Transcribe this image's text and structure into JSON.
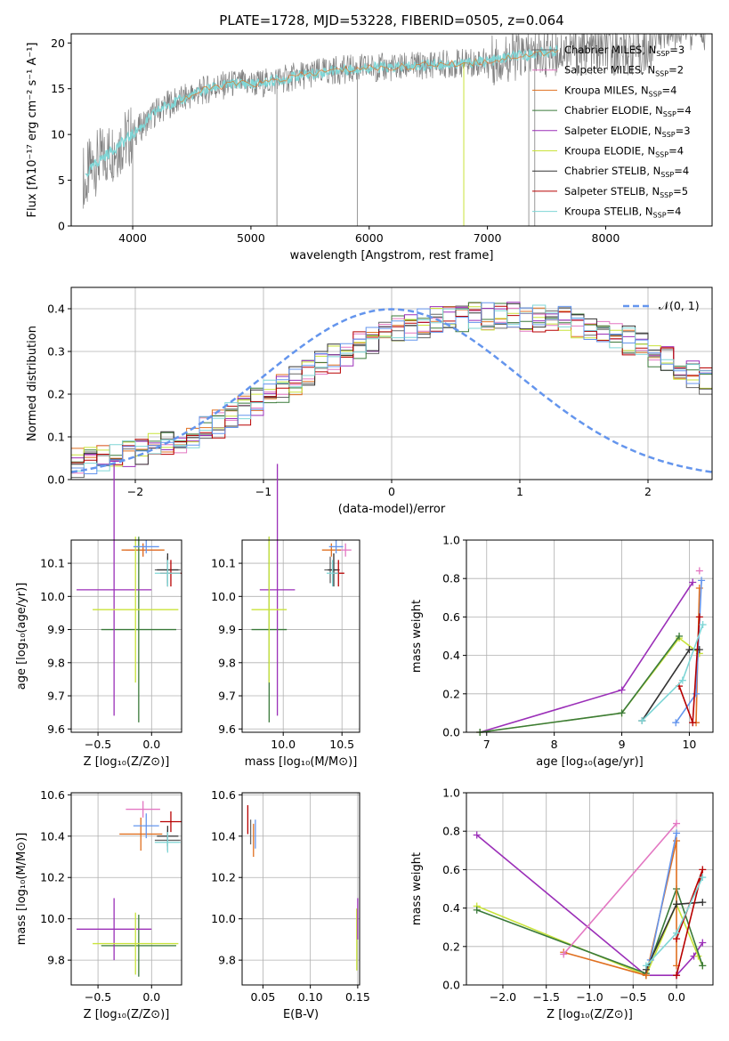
{
  "title": "PLATE=1728, MJD=53228, FIBERID=0505, z=0.064",
  "chart_data": [
    {
      "id": "spectrum",
      "type": "line",
      "xlabel": "wavelength [Angstrom, rest frame]",
      "ylabel": "Flux [fλ10⁻¹⁷ erg cm⁻² s⁻¹ A⁻¹]",
      "xlim": [
        3480,
        8900
      ],
      "ylim": [
        0,
        21
      ],
      "xticks": [
        4000,
        5000,
        6000,
        7000,
        8000
      ],
      "yticks": [
        0,
        5,
        10,
        15,
        20
      ],
      "grid": false,
      "legend_position": "right",
      "data": {
        "x": [
          3600,
          3700,
          3800,
          3900,
          4000,
          4100,
          4200,
          4300,
          4400,
          4500,
          4600,
          4700,
          4800,
          4900,
          5000,
          5100,
          5200,
          5300,
          5400,
          5500,
          5600,
          5700,
          5800,
          5900,
          6000,
          6100,
          6200,
          6300,
          6400,
          6500,
          6600,
          6700,
          6800,
          6900,
          7000,
          7100,
          7200,
          7300,
          7400,
          7500,
          7600
        ],
        "y": [
          5.5,
          7.0,
          8.0,
          9.0,
          10.0,
          11.2,
          12.5,
          13.3,
          13.7,
          14.3,
          14.8,
          15.2,
          15.4,
          15.6,
          15.5,
          15.6,
          15.9,
          16.1,
          16.4,
          16.6,
          16.8,
          17.0,
          17.1,
          17.2,
          17.3,
          17.3,
          17.3,
          17.4,
          17.5,
          17.6,
          17.7,
          17.7,
          17.8,
          17.9,
          18.0,
          18.2,
          18.5,
          18.6,
          18.8,
          19.0,
          19.2
        ]
      },
      "series": [
        {
          "label": "Chabrier MILES, N",
          "sub": "SSP",
          "suffix": "=3",
          "color": "#666666"
        },
        {
          "label": "Salpeter MILES, N",
          "sub": "SSP",
          "suffix": "=2",
          "color": "#e377c2"
        },
        {
          "label": "Kroupa MILES, N",
          "sub": "SSP",
          "suffix": "=4",
          "color": "#e07020"
        },
        {
          "label": "Chabrier ELODIE, N",
          "sub": "SSP",
          "suffix": "=4",
          "color": "#3a7a3a"
        },
        {
          "label": "Salpeter ELODIE, N",
          "sub": "SSP",
          "suffix": "=3",
          "color": "#9b2fb8"
        },
        {
          "label": "Kroupa ELODIE, N",
          "sub": "SSP",
          "suffix": "=4",
          "color": "#c9e33a"
        },
        {
          "label": "Chabrier STELIB, N",
          "sub": "SSP",
          "suffix": "=4",
          "color": "#333333"
        },
        {
          "label": "Salpeter STELIB, N",
          "sub": "SSP",
          "suffix": "=5",
          "color": "#b80000"
        },
        {
          "label": "Kroupa STELIB, N",
          "sub": "SSP",
          "suffix": "=4",
          "color": "#7fd6d6"
        }
      ]
    },
    {
      "id": "residuals",
      "type": "line",
      "xlabel": "(data-model)/error",
      "ylabel": "Normed distribution",
      "xlim": [
        -2.5,
        2.5
      ],
      "ylim": [
        0,
        0.45
      ],
      "xticks": [
        -2,
        -1,
        0,
        1,
        2
      ],
      "yticks": [
        0.0,
        0.1,
        0.2,
        0.3,
        0.4
      ],
      "grid": true,
      "legend": "𝒩(0, 1)",
      "legend_position": "top-right",
      "gaussian": {
        "mean": 0,
        "sigma": 1
      },
      "histogram": {
        "bin_width": 0.1,
        "bin_start": -2.5,
        "values": [
          0.04,
          0.042,
          0.045,
          0.05,
          0.058,
          0.065,
          0.073,
          0.082,
          0.092,
          0.104,
          0.117,
          0.131,
          0.146,
          0.162,
          0.18,
          0.198,
          0.215,
          0.232,
          0.249,
          0.266,
          0.283,
          0.299,
          0.314,
          0.327,
          0.339,
          0.349,
          0.358,
          0.365,
          0.371,
          0.376,
          0.379,
          0.38,
          0.381,
          0.382,
          0.381,
          0.38,
          0.379,
          0.376,
          0.371,
          0.365,
          0.357,
          0.348,
          0.338,
          0.326,
          0.313,
          0.298,
          0.282,
          0.265,
          0.248,
          0.231
        ]
      }
    },
    {
      "id": "age-Z",
      "type": "scatter",
      "xlabel": "Z [log₁₀(Z/Z⊙)]",
      "ylabel": "age  [log₁₀(age/yr)]",
      "xlim": [
        -0.75,
        0.28
      ],
      "ylim": [
        9.59,
        10.17
      ],
      "xticks": [
        -0.5,
        0.0
      ],
      "xticklabels": [
        "−0.5",
        "0.0"
      ],
      "yticks": [
        9.6,
        9.7,
        9.8,
        9.9,
        10.0,
        10.1
      ],
      "grid": true,
      "points": [
        {
          "x": 0.15,
          "y": 10.08,
          "xe": 0.12,
          "ye": 0.04,
          "color": "#666666"
        },
        {
          "x": -0.08,
          "y": 10.14,
          "xe": 0.16,
          "ye": 0.02,
          "color": "#e377c2"
        },
        {
          "x": -0.08,
          "y": 10.14,
          "xe": 0.2,
          "ye": 0.02,
          "color": "#e07020"
        },
        {
          "x": -0.12,
          "y": 9.9,
          "xe": 0.35,
          "ye": 0.28,
          "color": "#3a7a3a"
        },
        {
          "x": -0.35,
          "y": 10.02,
          "xe": 0.35,
          "ye": 0.38,
          "color": "#9b2fb8"
        },
        {
          "x": -0.15,
          "y": 9.96,
          "xe": 0.4,
          "ye": 0.22,
          "color": "#c9e33a"
        },
        {
          "x": 0.15,
          "y": 10.08,
          "xe": 0.1,
          "ye": 0.05,
          "color": "#333333"
        },
        {
          "x": 0.18,
          "y": 10.07,
          "xe": 0.1,
          "ye": 0.04,
          "color": "#b80000"
        },
        {
          "x": 0.15,
          "y": 10.07,
          "xe": 0.12,
          "ye": 0.04,
          "color": "#7fd6d6"
        },
        {
          "x": -0.05,
          "y": 10.15,
          "xe": 0.12,
          "ye": 0.02,
          "color": "#6495ed"
        }
      ]
    },
    {
      "id": "age-mass",
      "type": "scatter",
      "xlabel": "mass [log₁₀(M/M⊙)]",
      "xlim": [
        9.65,
        10.65
      ],
      "ylim": [
        9.59,
        10.17
      ],
      "xticks": [
        10.0,
        10.5
      ],
      "yticks": [
        9.6,
        9.7,
        9.8,
        9.9,
        10.0,
        10.1
      ],
      "grid": true,
      "points": [
        {
          "x": 10.4,
          "y": 10.08,
          "xe": 0.05,
          "ye": 0.04,
          "color": "#666666"
        },
        {
          "x": 10.53,
          "y": 10.14,
          "xe": 0.05,
          "ye": 0.02,
          "color": "#e377c2"
        },
        {
          "x": 10.41,
          "y": 10.14,
          "xe": 0.08,
          "ye": 0.02,
          "color": "#e07020"
        },
        {
          "x": 9.88,
          "y": 9.9,
          "xe": 0.15,
          "ye": 0.28,
          "color": "#3a7a3a"
        },
        {
          "x": 9.95,
          "y": 10.02,
          "xe": 0.15,
          "ye": 0.38,
          "color": "#9b2fb8"
        },
        {
          "x": 9.88,
          "y": 9.96,
          "xe": 0.15,
          "ye": 0.22,
          "color": "#c9e33a"
        },
        {
          "x": 10.43,
          "y": 10.08,
          "xe": 0.05,
          "ye": 0.05,
          "color": "#333333"
        },
        {
          "x": 10.47,
          "y": 10.07,
          "xe": 0.05,
          "ye": 0.04,
          "color": "#b80000"
        },
        {
          "x": 10.42,
          "y": 10.07,
          "xe": 0.05,
          "ye": 0.04,
          "color": "#7fd6d6"
        },
        {
          "x": 10.45,
          "y": 10.15,
          "xe": 0.06,
          "ye": 0.02,
          "color": "#6495ed"
        }
      ]
    },
    {
      "id": "weight-age",
      "type": "line",
      "xlabel": "age  [log₁₀(age/yr)]",
      "ylabel": "mass weight",
      "xlim": [
        6.7,
        10.35
      ],
      "ylim": [
        0,
        1
      ],
      "xticks": [
        7,
        8,
        9,
        10
      ],
      "yticks": [
        0.0,
        0.2,
        0.4,
        0.6,
        0.8,
        1.0
      ],
      "grid": true,
      "series": [
        {
          "color": "#9b2fb8",
          "x": [
            6.9,
            9.0,
            10.05
          ],
          "y": [
            0.0,
            0.22,
            0.78
          ]
        },
        {
          "color": "#c9e33a",
          "x": [
            6.9,
            9.0,
            9.85,
            10.15
          ],
          "y": [
            0.0,
            0.1,
            0.49,
            0.41
          ]
        },
        {
          "color": "#3a7a3a",
          "x": [
            6.9,
            9.0,
            9.85
          ],
          "y": [
            0.0,
            0.1,
            0.5
          ]
        },
        {
          "color": "#e07020",
          "x": [
            10.1,
            10.15
          ],
          "y": [
            0.05,
            0.75
          ]
        },
        {
          "color": "#e377c2",
          "x": [
            10.15
          ],
          "y": [
            0.84
          ]
        },
        {
          "color": "#6495ed",
          "x": [
            9.8,
            10.1,
            10.18
          ],
          "y": [
            0.05,
            0.2,
            0.79
          ]
        },
        {
          "color": "#333333",
          "x": [
            9.3,
            10.0,
            10.15
          ],
          "y": [
            0.06,
            0.43,
            0.43
          ]
        },
        {
          "color": "#b80000",
          "x": [
            9.85,
            10.05,
            10.15
          ],
          "y": [
            0.24,
            0.05,
            0.6
          ]
        },
        {
          "color": "#7fd6d6",
          "x": [
            9.3,
            9.9,
            10.2
          ],
          "y": [
            0.06,
            0.27,
            0.56
          ]
        }
      ]
    },
    {
      "id": "mass-Z",
      "type": "scatter",
      "xlabel": "Z [log₁₀(Z/Z⊙)]",
      "ylabel": "mass [log₁₀(M/M⊙)]",
      "xlim": [
        -0.75,
        0.28
      ],
      "ylim": [
        9.68,
        10.61
      ],
      "xticks": [
        -0.5,
        0.0
      ],
      "xticklabels": [
        "−0.5",
        "0.0"
      ],
      "yticks": [
        9.8,
        10.0,
        10.2,
        10.4,
        10.6
      ],
      "grid": true,
      "points": [
        {
          "x": 0.15,
          "y": 10.38,
          "xe": 0.12,
          "ye": 0.05,
          "color": "#666666"
        },
        {
          "x": -0.08,
          "y": 10.53,
          "xe": 0.16,
          "ye": 0.04,
          "color": "#e377c2"
        },
        {
          "x": -0.1,
          "y": 10.41,
          "xe": 0.2,
          "ye": 0.08,
          "color": "#e07020"
        },
        {
          "x": -0.12,
          "y": 9.87,
          "xe": 0.35,
          "ye": 0.15,
          "color": "#3a7a3a"
        },
        {
          "x": -0.35,
          "y": 9.95,
          "xe": 0.35,
          "ye": 0.15,
          "color": "#9b2fb8"
        },
        {
          "x": -0.15,
          "y": 9.88,
          "xe": 0.4,
          "ye": 0.15,
          "color": "#c9e33a"
        },
        {
          "x": 0.15,
          "y": 10.4,
          "xe": 0.1,
          "ye": 0.05,
          "color": "#333333"
        },
        {
          "x": 0.18,
          "y": 10.47,
          "xe": 0.1,
          "ye": 0.05,
          "color": "#b80000"
        },
        {
          "x": 0.15,
          "y": 10.37,
          "xe": 0.12,
          "ye": 0.05,
          "color": "#7fd6d6"
        },
        {
          "x": -0.05,
          "y": 10.45,
          "xe": 0.12,
          "ye": 0.06,
          "color": "#6495ed"
        }
      ]
    },
    {
      "id": "mass-EBV",
      "type": "scatter",
      "xlabel": "E(B-V)",
      "xlim": [
        0.028,
        0.152
      ],
      "ylim": [
        9.68,
        10.61
      ],
      "xticks": [
        0.05,
        0.1,
        0.15
      ],
      "xticklabels": [
        "0.05",
        "0.10",
        "0.15"
      ],
      "yticks": [
        9.8,
        10.0,
        10.2,
        10.4,
        10.6
      ],
      "grid": true,
      "points": [
        {
          "x": 0.034,
          "y": 10.48,
          "xe": 0.0,
          "ye": 0.07,
          "color": "#b80000"
        },
        {
          "x": 0.037,
          "y": 10.42,
          "xe": 0.0,
          "ye": 0.06,
          "color": "#666666"
        },
        {
          "x": 0.04,
          "y": 10.38,
          "xe": 0.0,
          "ye": 0.08,
          "color": "#e07020"
        },
        {
          "x": 0.042,
          "y": 10.41,
          "xe": 0.0,
          "ye": 0.07,
          "color": "#6495ed"
        },
        {
          "x": 0.149,
          "y": 9.9,
          "xe": 0.0,
          "ye": 0.15,
          "color": "#c9e33a"
        },
        {
          "x": 0.15,
          "y": 10.0,
          "xe": 0.0,
          "ye": 0.1,
          "color": "#9b2fb8"
        }
      ]
    },
    {
      "id": "weight-Z",
      "type": "line",
      "xlabel": "Z [log₁₀(Z/Z⊙)]",
      "ylabel": "mass weight",
      "xlim": [
        -2.42,
        0.42
      ],
      "ylim": [
        0,
        1
      ],
      "xticks": [
        -2.0,
        -1.5,
        -1.0,
        -0.5,
        0.0
      ],
      "xticklabels": [
        "−2.0",
        "−1.5",
        "−1.0",
        "−0.5",
        "0.0"
      ],
      "yticks": [
        0.0,
        0.2,
        0.4,
        0.6,
        0.8,
        1.0
      ],
      "grid": true,
      "series": [
        {
          "color": "#9b2fb8",
          "x": [
            -2.3,
            -0.35,
            0.0,
            0.2,
            0.3
          ],
          "y": [
            0.78,
            0.05,
            0.05,
            0.15,
            0.22
          ]
        },
        {
          "color": "#c9e33a",
          "x": [
            -2.3,
            -0.35,
            0.0,
            0.25,
            0.3
          ],
          "y": [
            0.41,
            0.05,
            0.42,
            0.15,
            0.1
          ]
        },
        {
          "color": "#3a7a3a",
          "x": [
            -2.3,
            -0.35,
            0.0,
            0.3
          ],
          "y": [
            0.39,
            0.06,
            0.5,
            0.1
          ]
        },
        {
          "color": "#e07020",
          "x": [
            -1.3,
            -0.35,
            0.0,
            0.0
          ],
          "y": [
            0.17,
            0.05,
            0.75,
            0.1
          ]
        },
        {
          "color": "#e377c2",
          "x": [
            -1.3,
            0.0
          ],
          "y": [
            0.16,
            0.84
          ]
        },
        {
          "color": "#6495ed",
          "x": [
            -0.3,
            0.0
          ],
          "y": [
            0.13,
            0.79
          ]
        },
        {
          "color": "#333333",
          "x": [
            -0.35,
            0.0,
            0.3
          ],
          "y": [
            0.08,
            0.42,
            0.43
          ]
        },
        {
          "color": "#b80000",
          "x": [
            0.0,
            0.3,
            0.0
          ],
          "y": [
            0.05,
            0.6,
            0.24
          ]
        },
        {
          "color": "#7fd6d6",
          "x": [
            -0.35,
            0.0,
            0.3
          ],
          "y": [
            0.1,
            0.27,
            0.56
          ]
        }
      ]
    }
  ]
}
